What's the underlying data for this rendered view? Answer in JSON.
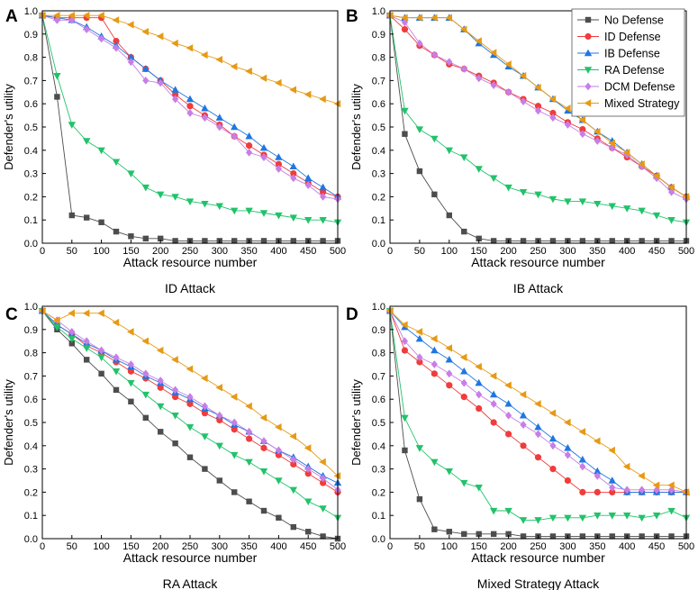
{
  "chart_data": [
    {
      "type": "line",
      "panel_label": "A",
      "title": "ID Attack",
      "xlabel": "Attack resource number",
      "ylabel": "Defender's utility",
      "xlim": [
        0,
        500
      ],
      "ylim": [
        0,
        1.0
      ],
      "x": [
        0,
        25,
        50,
        75,
        100,
        125,
        150,
        175,
        200,
        225,
        250,
        275,
        300,
        325,
        350,
        375,
        400,
        425,
        450,
        475,
        500
      ],
      "series": [
        {
          "name": "No Defense",
          "values": [
            0.98,
            0.63,
            0.12,
            0.11,
            0.09,
            0.05,
            0.03,
            0.02,
            0.02,
            0.01,
            0.01,
            0.01,
            0.01,
            0.01,
            0.01,
            0.01,
            0.01,
            0.01,
            0.01,
            0.01,
            0.01
          ]
        },
        {
          "name": "ID Defense",
          "values": [
            0.98,
            0.97,
            0.97,
            0.97,
            0.97,
            0.87,
            0.8,
            0.75,
            0.7,
            0.64,
            0.59,
            0.55,
            0.51,
            0.46,
            0.42,
            0.38,
            0.34,
            0.3,
            0.26,
            0.22,
            0.2
          ]
        },
        {
          "name": "IB Defense",
          "values": [
            0.98,
            0.97,
            0.96,
            0.93,
            0.89,
            0.85,
            0.8,
            0.75,
            0.7,
            0.66,
            0.62,
            0.58,
            0.54,
            0.5,
            0.46,
            0.41,
            0.37,
            0.33,
            0.28,
            0.24,
            0.2
          ]
        },
        {
          "name": "RA Defense",
          "values": [
            0.98,
            0.72,
            0.51,
            0.44,
            0.4,
            0.35,
            0.3,
            0.24,
            0.21,
            0.2,
            0.18,
            0.17,
            0.16,
            0.14,
            0.14,
            0.13,
            0.12,
            0.11,
            0.1,
            0.1,
            0.09
          ]
        },
        {
          "name": "DCM Defense",
          "values": [
            0.98,
            0.96,
            0.96,
            0.92,
            0.88,
            0.84,
            0.78,
            0.7,
            0.69,
            0.62,
            0.56,
            0.54,
            0.5,
            0.46,
            0.39,
            0.37,
            0.32,
            0.28,
            0.25,
            0.2,
            0.19
          ]
        },
        {
          "name": "Mixed Strategy",
          "values": [
            0.98,
            0.98,
            0.98,
            0.98,
            0.98,
            0.96,
            0.94,
            0.91,
            0.89,
            0.86,
            0.84,
            0.81,
            0.79,
            0.76,
            0.74,
            0.71,
            0.69,
            0.66,
            0.64,
            0.62,
            0.6
          ]
        }
      ]
    },
    {
      "type": "line",
      "panel_label": "B",
      "title": "IB Attack",
      "xlabel": "Attack resource number",
      "ylabel": "Defender's utility",
      "xlim": [
        0,
        500
      ],
      "ylim": [
        0,
        1.0
      ],
      "x": [
        0,
        25,
        50,
        75,
        100,
        125,
        150,
        175,
        200,
        225,
        250,
        275,
        300,
        325,
        350,
        375,
        400,
        425,
        450,
        475,
        500
      ],
      "series": [
        {
          "name": "No Defense",
          "values": [
            0.98,
            0.47,
            0.31,
            0.21,
            0.12,
            0.05,
            0.02,
            0.01,
            0.01,
            0.01,
            0.01,
            0.01,
            0.01,
            0.01,
            0.01,
            0.01,
            0.01,
            0.01,
            0.01,
            0.01,
            0.01
          ]
        },
        {
          "name": "ID Defense",
          "values": [
            0.98,
            0.92,
            0.85,
            0.81,
            0.77,
            0.75,
            0.72,
            0.69,
            0.65,
            0.62,
            0.59,
            0.56,
            0.52,
            0.49,
            0.45,
            0.41,
            0.37,
            0.33,
            0.29,
            0.24,
            0.2
          ]
        },
        {
          "name": "IB Defense",
          "values": [
            0.98,
            0.97,
            0.97,
            0.97,
            0.97,
            0.92,
            0.86,
            0.81,
            0.76,
            0.72,
            0.67,
            0.62,
            0.57,
            0.53,
            0.48,
            0.44,
            0.39,
            0.34,
            0.29,
            0.24,
            0.2
          ]
        },
        {
          "name": "RA Defense",
          "values": [
            0.98,
            0.57,
            0.49,
            0.45,
            0.4,
            0.37,
            0.32,
            0.28,
            0.24,
            0.22,
            0.21,
            0.19,
            0.18,
            0.18,
            0.17,
            0.16,
            0.15,
            0.14,
            0.12,
            0.1,
            0.09
          ]
        },
        {
          "name": "DCM Defense",
          "values": [
            0.98,
            0.95,
            0.86,
            0.81,
            0.78,
            0.75,
            0.71,
            0.68,
            0.65,
            0.61,
            0.57,
            0.54,
            0.51,
            0.47,
            0.44,
            0.41,
            0.38,
            0.33,
            0.28,
            0.22,
            0.19
          ]
        },
        {
          "name": "Mixed Strategy",
          "values": [
            0.98,
            0.97,
            0.97,
            0.97,
            0.97,
            0.92,
            0.87,
            0.82,
            0.77,
            0.72,
            0.67,
            0.62,
            0.58,
            0.53,
            0.48,
            0.43,
            0.39,
            0.34,
            0.29,
            0.24,
            0.2
          ]
        }
      ]
    },
    {
      "type": "line",
      "panel_label": "C",
      "title": "RA Attack",
      "xlabel": "Attack resource number",
      "ylabel": "Defender's utility",
      "xlim": [
        0,
        500
      ],
      "ylim": [
        0,
        1.0
      ],
      "x": [
        0,
        25,
        50,
        75,
        100,
        125,
        150,
        175,
        200,
        225,
        250,
        275,
        300,
        325,
        350,
        375,
        400,
        425,
        450,
        475,
        500
      ],
      "series": [
        {
          "name": "No Defense",
          "values": [
            0.98,
            0.9,
            0.84,
            0.77,
            0.71,
            0.64,
            0.59,
            0.52,
            0.46,
            0.41,
            0.35,
            0.3,
            0.25,
            0.2,
            0.16,
            0.12,
            0.09,
            0.05,
            0.03,
            0.01,
            0.0
          ]
        },
        {
          "name": "ID Defense",
          "values": [
            0.98,
            0.92,
            0.88,
            0.83,
            0.8,
            0.76,
            0.72,
            0.69,
            0.65,
            0.61,
            0.58,
            0.54,
            0.51,
            0.47,
            0.43,
            0.39,
            0.36,
            0.32,
            0.28,
            0.24,
            0.2
          ]
        },
        {
          "name": "IB Defense",
          "values": [
            0.98,
            0.92,
            0.88,
            0.84,
            0.81,
            0.77,
            0.74,
            0.7,
            0.67,
            0.63,
            0.6,
            0.56,
            0.53,
            0.49,
            0.46,
            0.42,
            0.38,
            0.35,
            0.31,
            0.27,
            0.24
          ]
        },
        {
          "name": "RA Defense",
          "values": [
            0.98,
            0.91,
            0.86,
            0.82,
            0.78,
            0.72,
            0.67,
            0.62,
            0.57,
            0.53,
            0.48,
            0.44,
            0.4,
            0.36,
            0.33,
            0.29,
            0.25,
            0.21,
            0.16,
            0.13,
            0.09
          ]
        },
        {
          "name": "DCM Defense",
          "values": [
            0.98,
            0.94,
            0.89,
            0.85,
            0.81,
            0.78,
            0.75,
            0.71,
            0.68,
            0.64,
            0.61,
            0.57,
            0.53,
            0.5,
            0.46,
            0.42,
            0.38,
            0.34,
            0.3,
            0.26,
            0.21
          ]
        },
        {
          "name": "Mixed Strategy",
          "values": [
            0.98,
            0.94,
            0.97,
            0.97,
            0.97,
            0.93,
            0.89,
            0.85,
            0.81,
            0.77,
            0.73,
            0.69,
            0.65,
            0.61,
            0.57,
            0.52,
            0.48,
            0.44,
            0.39,
            0.33,
            0.27
          ]
        }
      ]
    },
    {
      "type": "line",
      "panel_label": "D",
      "title": "Mixed Strategy Attack",
      "xlabel": "Attack resource number",
      "ylabel": "Defender's utility",
      "xlim": [
        0,
        500
      ],
      "ylim": [
        0,
        1.0
      ],
      "x": [
        0,
        25,
        50,
        75,
        100,
        125,
        150,
        175,
        200,
        225,
        250,
        275,
        300,
        325,
        350,
        375,
        400,
        425,
        450,
        475,
        500
      ],
      "series": [
        {
          "name": "No Defense",
          "values": [
            0.98,
            0.38,
            0.17,
            0.04,
            0.03,
            0.02,
            0.02,
            0.02,
            0.02,
            0.01,
            0.01,
            0.01,
            0.01,
            0.01,
            0.01,
            0.01,
            0.01,
            0.01,
            0.01,
            0.01,
            0.01
          ]
        },
        {
          "name": "ID Defense",
          "values": [
            0.98,
            0.81,
            0.76,
            0.71,
            0.66,
            0.61,
            0.56,
            0.5,
            0.45,
            0.4,
            0.35,
            0.3,
            0.25,
            0.2,
            0.2,
            0.2,
            0.2,
            0.2,
            0.2,
            0.2,
            0.2
          ]
        },
        {
          "name": "IB Defense",
          "values": [
            0.98,
            0.91,
            0.86,
            0.81,
            0.77,
            0.72,
            0.67,
            0.62,
            0.58,
            0.53,
            0.48,
            0.43,
            0.39,
            0.34,
            0.29,
            0.25,
            0.2,
            0.2,
            0.2,
            0.2,
            0.2
          ]
        },
        {
          "name": "RA Defense",
          "values": [
            0.98,
            0.52,
            0.39,
            0.33,
            0.29,
            0.24,
            0.22,
            0.12,
            0.12,
            0.08,
            0.08,
            0.09,
            0.09,
            0.09,
            0.1,
            0.1,
            0.1,
            0.09,
            0.1,
            0.12,
            0.09
          ]
        },
        {
          "name": "DCM Defense",
          "values": [
            0.98,
            0.85,
            0.78,
            0.75,
            0.71,
            0.67,
            0.62,
            0.58,
            0.53,
            0.49,
            0.45,
            0.4,
            0.36,
            0.31,
            0.27,
            0.22,
            0.21,
            0.21,
            0.21,
            0.21,
            0.2
          ]
        },
        {
          "name": "Mixed Strategy",
          "values": [
            0.98,
            0.92,
            0.89,
            0.86,
            0.82,
            0.78,
            0.74,
            0.7,
            0.66,
            0.62,
            0.58,
            0.54,
            0.5,
            0.46,
            0.42,
            0.38,
            0.31,
            0.27,
            0.23,
            0.23,
            0.2
          ]
        }
      ]
    }
  ],
  "legend": {
    "placement": "top-right of panel B",
    "entries": [
      "No Defense",
      "ID Defense",
      "IB Defense",
      "RA Defense",
      "DCM Defense",
      "Mixed Strategy"
    ]
  },
  "series_styles": {
    "No Defense": {
      "color": "#4d4d4d",
      "marker": "square"
    },
    "ID Defense": {
      "color": "#f03c3c",
      "marker": "circle"
    },
    "IB Defense": {
      "color": "#1f77e0",
      "marker": "triangle-up"
    },
    "RA Defense": {
      "color": "#22c26b",
      "marker": "triangle-down"
    },
    "DCM Defense": {
      "color": "#c77ee6",
      "marker": "diamond"
    },
    "Mixed Strategy": {
      "color": "#e69a16",
      "marker": "triangle-left"
    }
  },
  "axis_ticks": {
    "x": [
      0,
      50,
      100,
      150,
      200,
      250,
      300,
      350,
      400,
      450,
      500
    ],
    "y": [
      "0.0",
      "0.1",
      "0.2",
      "0.3",
      "0.4",
      "0.5",
      "0.6",
      "0.7",
      "0.8",
      "0.9",
      "1.0"
    ]
  }
}
